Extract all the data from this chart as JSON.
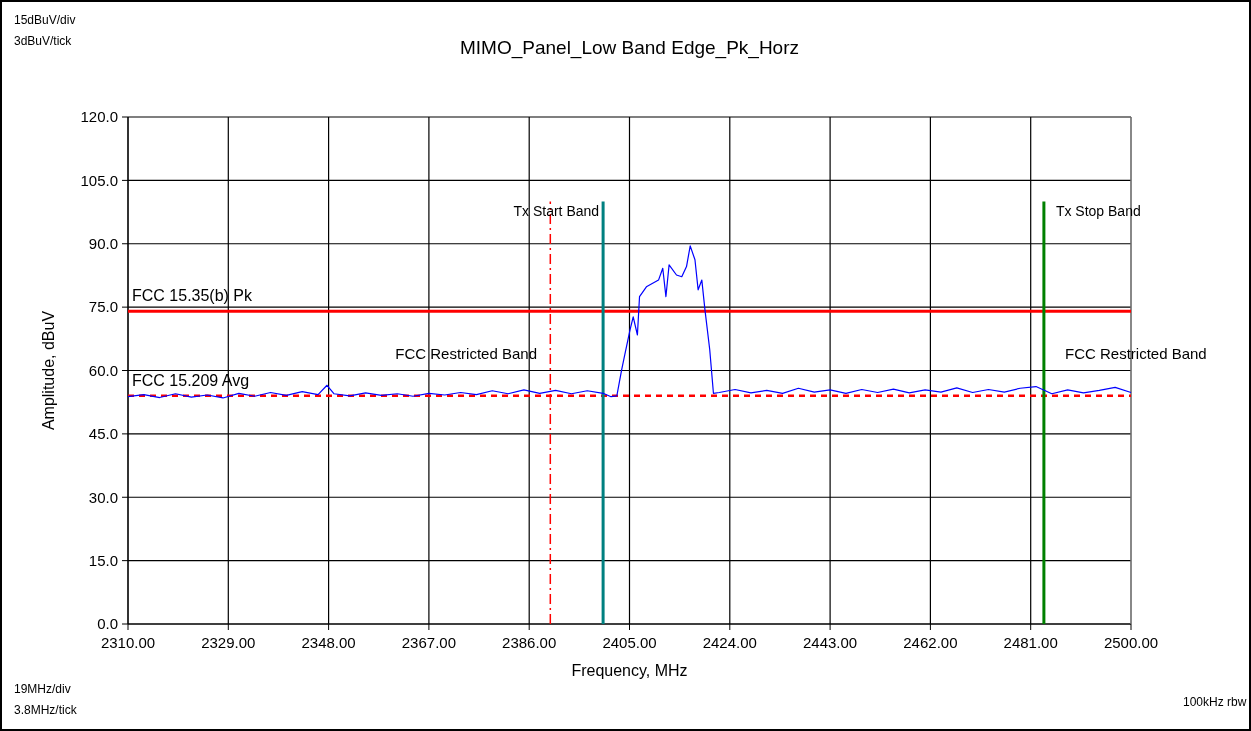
{
  "chart_data": {
    "type": "line",
    "title": "MIMO_Panel_Low Band Edge_Pk_Horz",
    "xlabel": "Frequency, MHz",
    "ylabel": "Amplitude, dBuV",
    "x": [
      2310,
      2313,
      2316,
      2319,
      2322,
      2325,
      2328,
      2331,
      2334,
      2337,
      2340,
      2343,
      2346,
      2347.7,
      2349,
      2352,
      2355,
      2358,
      2361,
      2364,
      2367,
      2370,
      2373,
      2376,
      2379,
      2382,
      2385,
      2388,
      2391,
      2394,
      2397,
      2400,
      2401.5,
      2402.6,
      2403.5,
      2404.1,
      2405.1,
      2405.7,
      2406.5,
      2406.9,
      2408.2,
      2410.5,
      2411.3,
      2411.9,
      2412.5,
      2413.9,
      2414.9,
      2415.8,
      2416.5,
      2417.4,
      2418,
      2418.7,
      2419.3,
      2420.2,
      2420.9,
      2422,
      2425,
      2428,
      2431,
      2434,
      2437,
      2440,
      2443,
      2446,
      2449,
      2452,
      2455,
      2458,
      2461,
      2464,
      2467,
      2470,
      2473,
      2476,
      2479,
      2482,
      2485,
      2488,
      2491,
      2494,
      2497,
      2500
    ],
    "series": [
      {
        "color": "#0000ff",
        "values": [
          53.8,
          54.3,
          53.6,
          54.5,
          53.7,
          54.2,
          53.5,
          54.6,
          53.9,
          54.8,
          54.1,
          55.0,
          54.3,
          56.5,
          54.5,
          54.0,
          54.7,
          54.1,
          54.5,
          53.9,
          54.6,
          54.2,
          54.8,
          54.3,
          55.2,
          54.5,
          55.4,
          54.6,
          55.3,
          54.5,
          55.2,
          54.6,
          53.8,
          54.0,
          60.1,
          63.7,
          69.6,
          72.7,
          68.4,
          77.5,
          79.8,
          81.4,
          84.2,
          77.5,
          85.0,
          82.6,
          82.2,
          84.6,
          89.5,
          86.2,
          79.1,
          81.4,
          74.3,
          64.9,
          54.6,
          54.8,
          55.5,
          54.7,
          55.3,
          54.6,
          55.8,
          54.9,
          55.4,
          54.6,
          55.5,
          54.8,
          55.6,
          54.7,
          55.4,
          54.9,
          55.9,
          54.8,
          55.5,
          54.9,
          55.8,
          56.2,
          54.5,
          55.4,
          54.7,
          55.3,
          56.0,
          54.8
        ]
      }
    ],
    "xlim": [
      2310,
      2500
    ],
    "ylim": [
      0,
      120
    ],
    "xticks": [
      {
        "value": 2310,
        "label": "2310.00"
      },
      {
        "value": 2329,
        "label": "2329.00"
      },
      {
        "value": 2348,
        "label": "2348.00"
      },
      {
        "value": 2367,
        "label": "2367.00"
      },
      {
        "value": 2386,
        "label": "2386.00"
      },
      {
        "value": 2405,
        "label": "2405.00"
      },
      {
        "value": 2424,
        "label": "2424.00"
      },
      {
        "value": 2443,
        "label": "2443.00"
      },
      {
        "value": 2462,
        "label": "2462.00"
      },
      {
        "value": 2481,
        "label": "2481.00"
      },
      {
        "value": 2500,
        "label": "2500.00"
      }
    ],
    "yticks": [
      {
        "value": 0,
        "label": "0.0"
      },
      {
        "value": 15,
        "label": "15.0"
      },
      {
        "value": 30,
        "label": "30.0"
      },
      {
        "value": 45,
        "label": "45.0"
      },
      {
        "value": 60,
        "label": "60.0"
      },
      {
        "value": 75,
        "label": "75.0"
      },
      {
        "value": 90,
        "label": "90.0"
      },
      {
        "value": 105,
        "label": "105.0"
      },
      {
        "value": 120,
        "label": "120.0"
      }
    ],
    "grid": true,
    "marker": "none",
    "line_style": "solid",
    "ref_lines": [
      {
        "axis": "y",
        "value": 74,
        "label": "FCC 15.35(b) Pk",
        "color": "#ff0000",
        "line_style": "solid"
      },
      {
        "axis": "y",
        "value": 54,
        "label": "FCC 15.209 Avg",
        "color": "#ff0000",
        "line_style": "dashed"
      },
      {
        "axis": "x",
        "value": 2390,
        "color": "#ff0000",
        "line_style": "dashed"
      },
      {
        "axis": "x",
        "value": 2400,
        "label": "Tx Start Band",
        "color": "#008080",
        "line_style": "solid"
      },
      {
        "axis": "x",
        "value": 2483.5,
        "label": "Tx Stop Band",
        "color": "#008000",
        "line_style": "solid"
      }
    ],
    "annotations": [
      "FCC Restricted Band",
      "FCC Restricted Band",
      "15dBuV/div",
      "3dBuV/tick",
      "19MHz/div",
      "3.8MHz/tick",
      "100kHz rbw"
    ]
  }
}
